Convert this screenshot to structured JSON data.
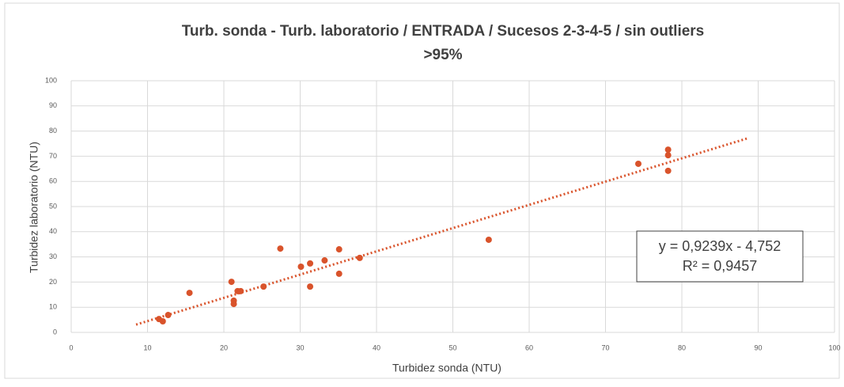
{
  "chart_data": {
    "type": "scatter",
    "title": "Turb. sonda - Turb. laboratorio  /  ENTRADA /  Sucesos 2-3-4-5 / sin outliers",
    "subtitle": ">95%",
    "x_label": "Turbidez sonda (NTU)",
    "y_label": "Turbidez laboratorio (NTU)",
    "x": [
      11.5,
      12.0,
      12.7,
      15.5,
      21.0,
      21.3,
      21.3,
      21.8,
      22.2,
      25.2,
      27.4,
      30.1,
      31.3,
      31.3,
      33.2,
      35.1,
      35.1,
      37.8,
      54.7,
      74.3,
      78.2,
      78.2,
      78.2
    ],
    "y": [
      5.3,
      4.4,
      6.9,
      15.7,
      20.1,
      12.6,
      11.3,
      16.4,
      16.4,
      18.2,
      33.3,
      26.1,
      27.4,
      18.2,
      28.6,
      33.0,
      23.3,
      29.6,
      36.8,
      67.0,
      72.6,
      70.4,
      64.2
    ],
    "color": "#d9532b",
    "xlim": [
      0,
      100
    ],
    "xticks": [
      0,
      10,
      20,
      30,
      40,
      50,
      60,
      70,
      80,
      90,
      100
    ],
    "ylim": [
      0,
      100
    ],
    "yticks": [
      0,
      10,
      20,
      30,
      40,
      50,
      60,
      70,
      80,
      90,
      100
    ],
    "grid": true,
    "trendline": {
      "slope": 0.9239,
      "intercept": -4.752,
      "x_range": [
        8.5,
        88.5
      ]
    },
    "equation": [
      "y = 0,9239x - 4,752",
      "R² = 0,9457"
    ]
  }
}
